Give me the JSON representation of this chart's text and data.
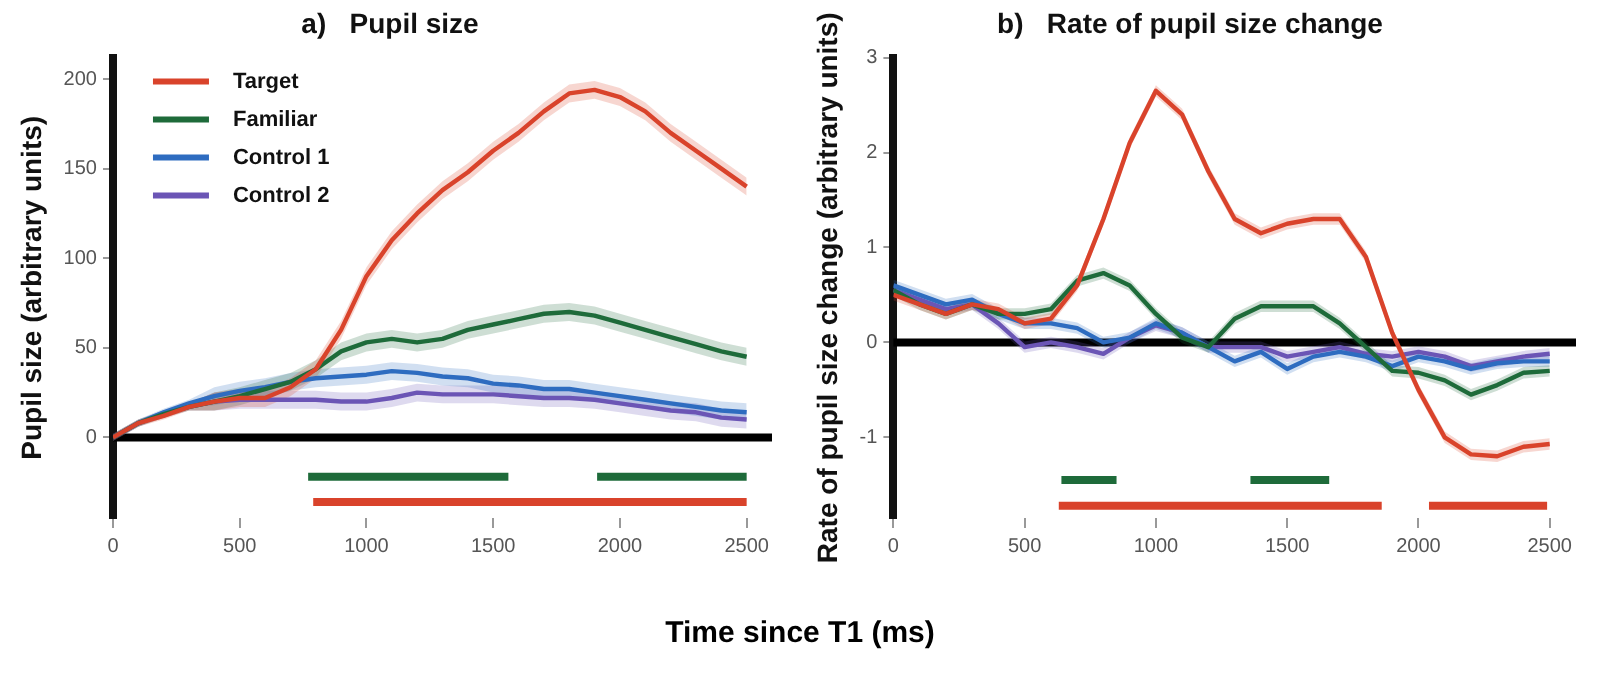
{
  "chart_data": [
    {
      "type": "line",
      "title": "a)   Pupil size",
      "xlabel": "Time since T1 (ms)",
      "ylabel": "Pupil size (arbitrary units)",
      "x": [
        0,
        100,
        200,
        300,
        400,
        500,
        600,
        700,
        800,
        900,
        1000,
        1100,
        1200,
        1300,
        1400,
        1500,
        1600,
        1700,
        1800,
        1900,
        2000,
        2100,
        2200,
        2300,
        2400,
        2500
      ],
      "xlim": [
        0,
        2600
      ],
      "xticks": [
        0,
        500,
        1000,
        1500,
        2000,
        2500
      ],
      "ylim": [
        -45,
        212
      ],
      "yticks": [
        0,
        50,
        100,
        150,
        200
      ],
      "grid": false,
      "legend": "top left",
      "marker": "none",
      "line_style": "solid",
      "ref_lines": [
        {
          "axis": "y",
          "value": 0,
          "color": "#000000"
        }
      ],
      "series": [
        {
          "name": "Target",
          "color": "#d9432b",
          "values": [
            0,
            8,
            12,
            17,
            20,
            22,
            22,
            28,
            38,
            60,
            90,
            110,
            125,
            138,
            148,
            160,
            170,
            182,
            192,
            194,
            190,
            182,
            170,
            160,
            150,
            140
          ],
          "lower": [
            -2,
            6,
            10,
            15,
            15,
            17,
            17,
            23,
            33,
            55,
            85,
            105,
            120,
            133,
            143,
            155,
            165,
            177,
            187,
            189,
            185,
            177,
            165,
            155,
            145,
            135
          ],
          "upper": [
            2,
            10,
            14,
            19,
            25,
            27,
            27,
            33,
            43,
            65,
            95,
            115,
            130,
            143,
            153,
            165,
            175,
            187,
            197,
            199,
            195,
            187,
            175,
            165,
            155,
            145
          ]
        },
        {
          "name": "Familiar",
          "color": "#1e6b3a",
          "values": [
            0,
            8,
            13,
            17,
            20,
            23,
            27,
            31,
            38,
            48,
            53,
            55,
            53,
            55,
            60,
            63,
            66,
            69,
            70,
            68,
            64,
            60,
            56,
            52,
            48,
            45
          ],
          "lower": [
            -2,
            6,
            11,
            15,
            15,
            18,
            22,
            26,
            33,
            43,
            48,
            50,
            48,
            50,
            55,
            58,
            61,
            64,
            65,
            63,
            59,
            55,
            51,
            47,
            43,
            40
          ],
          "upper": [
            2,
            10,
            15,
            19,
            25,
            28,
            32,
            36,
            43,
            53,
            58,
            60,
            58,
            60,
            65,
            68,
            71,
            74,
            75,
            73,
            69,
            65,
            61,
            57,
            53,
            50
          ]
        },
        {
          "name": "Control 1",
          "color": "#2e6cc0",
          "values": [
            0,
            8,
            14,
            19,
            23,
            26,
            28,
            31,
            33,
            34,
            35,
            37,
            36,
            34,
            33,
            30,
            29,
            27,
            27,
            25,
            23,
            21,
            19,
            17,
            15,
            14
          ],
          "lower": [
            -2,
            6,
            12,
            17,
            18,
            21,
            23,
            26,
            28,
            29,
            30,
            32,
            31,
            29,
            28,
            25,
            24,
            22,
            22,
            20,
            18,
            16,
            14,
            12,
            10,
            9
          ],
          "upper": [
            2,
            10,
            16,
            21,
            28,
            31,
            33,
            36,
            38,
            39,
            40,
            42,
            41,
            39,
            38,
            35,
            34,
            32,
            32,
            30,
            28,
            26,
            24,
            22,
            20,
            19
          ]
        },
        {
          "name": "Control 2",
          "color": "#6b55b5",
          "values": [
            0,
            8,
            13,
            17,
            20,
            21,
            21,
            21,
            21,
            20,
            20,
            22,
            25,
            24,
            24,
            24,
            23,
            22,
            22,
            21,
            19,
            17,
            15,
            14,
            11,
            10
          ],
          "lower": [
            -2,
            6,
            11,
            15,
            15,
            16,
            16,
            16,
            16,
            15,
            15,
            17,
            20,
            19,
            19,
            19,
            18,
            17,
            17,
            16,
            14,
            12,
            10,
            9,
            6,
            5
          ],
          "upper": [
            2,
            10,
            15,
            19,
            25,
            26,
            26,
            26,
            26,
            25,
            25,
            27,
            30,
            29,
            29,
            29,
            28,
            27,
            27,
            26,
            24,
            22,
            20,
            19,
            16,
            15
          ]
        },
        {
          "type": "line",
          "color": "#1e6b3a",
          "x": [
            770,
            1560
          ],
          "values": [
            -22,
            -22
          ]
        },
        {
          "type": "line",
          "color": "#1e6b3a",
          "x": [
            1910,
            2500
          ],
          "values": [
            -22,
            -22
          ]
        },
        {
          "type": "line",
          "color": "#d9432b",
          "x": [
            790,
            2500
          ],
          "values": [
            -36,
            -36
          ]
        }
      ]
    },
    {
      "type": "line",
      "title": "b)   Rate of pupil size change",
      "ylabel": "Rate of pupil size change (arbitrary units)",
      "x": [
        0,
        100,
        200,
        300,
        400,
        500,
        600,
        700,
        800,
        900,
        1000,
        1100,
        1200,
        1300,
        1400,
        1500,
        1600,
        1700,
        1800,
        1900,
        2000,
        2100,
        2200,
        2300,
        2400,
        2500
      ],
      "xlim": [
        0,
        2600
      ],
      "xticks": [
        0,
        500,
        1000,
        1500,
        2000,
        2500
      ],
      "ylim": [
        -1.85,
        3
      ],
      "yticks": [
        -1,
        0,
        1,
        2,
        3
      ],
      "grid": false,
      "legend": false,
      "marker": "none",
      "line_style": "solid",
      "ref_lines": [
        {
          "axis": "y",
          "value": 0,
          "color": "#000000"
        }
      ],
      "series": [
        {
          "color": "#d9432b",
          "values": [
            0.5,
            0.4,
            0.3,
            0.4,
            0.35,
            0.2,
            0.25,
            0.6,
            1.3,
            2.1,
            2.65,
            2.4,
            1.8,
            1.3,
            1.15,
            1.25,
            1.3,
            1.3,
            0.9,
            0.1,
            -0.5,
            -1.0,
            -1.18,
            -1.2,
            -1.1,
            -1.07
          ],
          "lower": [
            0.44,
            0.34,
            0.24,
            0.34,
            0.29,
            0.14,
            0.19,
            0.54,
            1.24,
            2.04,
            2.59,
            2.34,
            1.74,
            1.24,
            1.09,
            1.19,
            1.24,
            1.24,
            0.84,
            0.04,
            -0.56,
            -1.06,
            -1.24,
            -1.26,
            -1.16,
            -1.13
          ],
          "upper": [
            0.56,
            0.46,
            0.36,
            0.46,
            0.41,
            0.26,
            0.31,
            0.66,
            1.36,
            2.16,
            2.71,
            2.46,
            1.86,
            1.36,
            1.21,
            1.31,
            1.36,
            1.36,
            0.96,
            0.16,
            -0.44,
            -0.94,
            -1.12,
            -1.14,
            -1.04,
            -1.01
          ]
        },
        {
          "color": "#1e6b3a",
          "values": [
            0.55,
            0.4,
            0.3,
            0.4,
            0.3,
            0.3,
            0.35,
            0.65,
            0.73,
            0.6,
            0.3,
            0.05,
            -0.05,
            0.25,
            0.38,
            0.38,
            0.38,
            0.2,
            -0.05,
            -0.3,
            -0.32,
            -0.4,
            -0.55,
            -0.45,
            -0.32,
            -0.3
          ],
          "lower": [
            0.49,
            0.34,
            0.24,
            0.34,
            0.24,
            0.24,
            0.29,
            0.59,
            0.67,
            0.54,
            0.24,
            -0.01,
            -0.11,
            0.19,
            0.32,
            0.32,
            0.32,
            0.14,
            -0.11,
            -0.36,
            -0.38,
            -0.46,
            -0.61,
            -0.51,
            -0.38,
            -0.36
          ],
          "upper": [
            0.61,
            0.46,
            0.36,
            0.46,
            0.36,
            0.36,
            0.41,
            0.71,
            0.79,
            0.66,
            0.36,
            0.11,
            0.01,
            0.31,
            0.44,
            0.44,
            0.44,
            0.26,
            0.01,
            -0.24,
            -0.26,
            -0.34,
            -0.49,
            -0.39,
            -0.26,
            -0.24
          ]
        },
        {
          "color": "#2e6cc0",
          "values": [
            0.6,
            0.5,
            0.4,
            0.45,
            0.3,
            0.2,
            0.2,
            0.15,
            0.0,
            0.05,
            0.2,
            0.1,
            -0.05,
            -0.2,
            -0.1,
            -0.28,
            -0.15,
            -0.1,
            -0.15,
            -0.25,
            -0.15,
            -0.2,
            -0.28,
            -0.22,
            -0.2,
            -0.2
          ],
          "lower": [
            0.54,
            0.44,
            0.34,
            0.39,
            0.24,
            0.14,
            0.14,
            0.09,
            -0.06,
            -0.01,
            0.14,
            0.04,
            -0.11,
            -0.26,
            -0.16,
            -0.34,
            -0.21,
            -0.16,
            -0.21,
            -0.31,
            -0.21,
            -0.26,
            -0.34,
            -0.28,
            -0.26,
            -0.26
          ],
          "upper": [
            0.66,
            0.56,
            0.46,
            0.51,
            0.36,
            0.26,
            0.26,
            0.21,
            0.06,
            0.11,
            0.26,
            0.16,
            0.01,
            -0.14,
            -0.04,
            -0.22,
            -0.09,
            -0.04,
            -0.09,
            -0.19,
            -0.09,
            -0.14,
            -0.22,
            -0.16,
            -0.14,
            -0.14
          ]
        },
        {
          "color": "#6b55b5",
          "values": [
            0.55,
            0.45,
            0.35,
            0.4,
            0.2,
            -0.05,
            0.0,
            -0.05,
            -0.12,
            0.05,
            0.18,
            0.1,
            -0.05,
            -0.05,
            -0.05,
            -0.15,
            -0.1,
            -0.05,
            -0.12,
            -0.15,
            -0.1,
            -0.15,
            -0.25,
            -0.2,
            -0.15,
            -0.12
          ],
          "lower": [
            0.49,
            0.39,
            0.29,
            0.34,
            0.14,
            -0.11,
            -0.06,
            -0.11,
            -0.18,
            -0.01,
            0.12,
            0.04,
            -0.11,
            -0.11,
            -0.11,
            -0.21,
            -0.16,
            -0.11,
            -0.18,
            -0.21,
            -0.16,
            -0.21,
            -0.31,
            -0.26,
            -0.21,
            -0.18
          ],
          "upper": [
            0.61,
            0.51,
            0.41,
            0.46,
            0.26,
            0.01,
            0.06,
            0.01,
            -0.06,
            0.11,
            0.24,
            0.16,
            0.01,
            0.01,
            0.01,
            -0.09,
            -0.04,
            0.01,
            -0.06,
            -0.09,
            -0.04,
            -0.09,
            -0.19,
            -0.14,
            -0.09,
            -0.06
          ]
        },
        {
          "type": "line",
          "color": "#1e6b3a",
          "x": [
            640,
            850
          ],
          "values": [
            -1.45,
            -1.45
          ]
        },
        {
          "type": "line",
          "color": "#1e6b3a",
          "x": [
            1360,
            1660
          ],
          "values": [
            -1.45,
            -1.45
          ]
        },
        {
          "type": "line",
          "color": "#d9432b",
          "x": [
            630,
            1860
          ],
          "values": [
            -1.72,
            -1.72
          ]
        },
        {
          "type": "line",
          "color": "#d9432b",
          "x": [
            2040,
            2490
          ],
          "values": [
            -1.72,
            -1.72
          ]
        }
      ]
    }
  ]
}
